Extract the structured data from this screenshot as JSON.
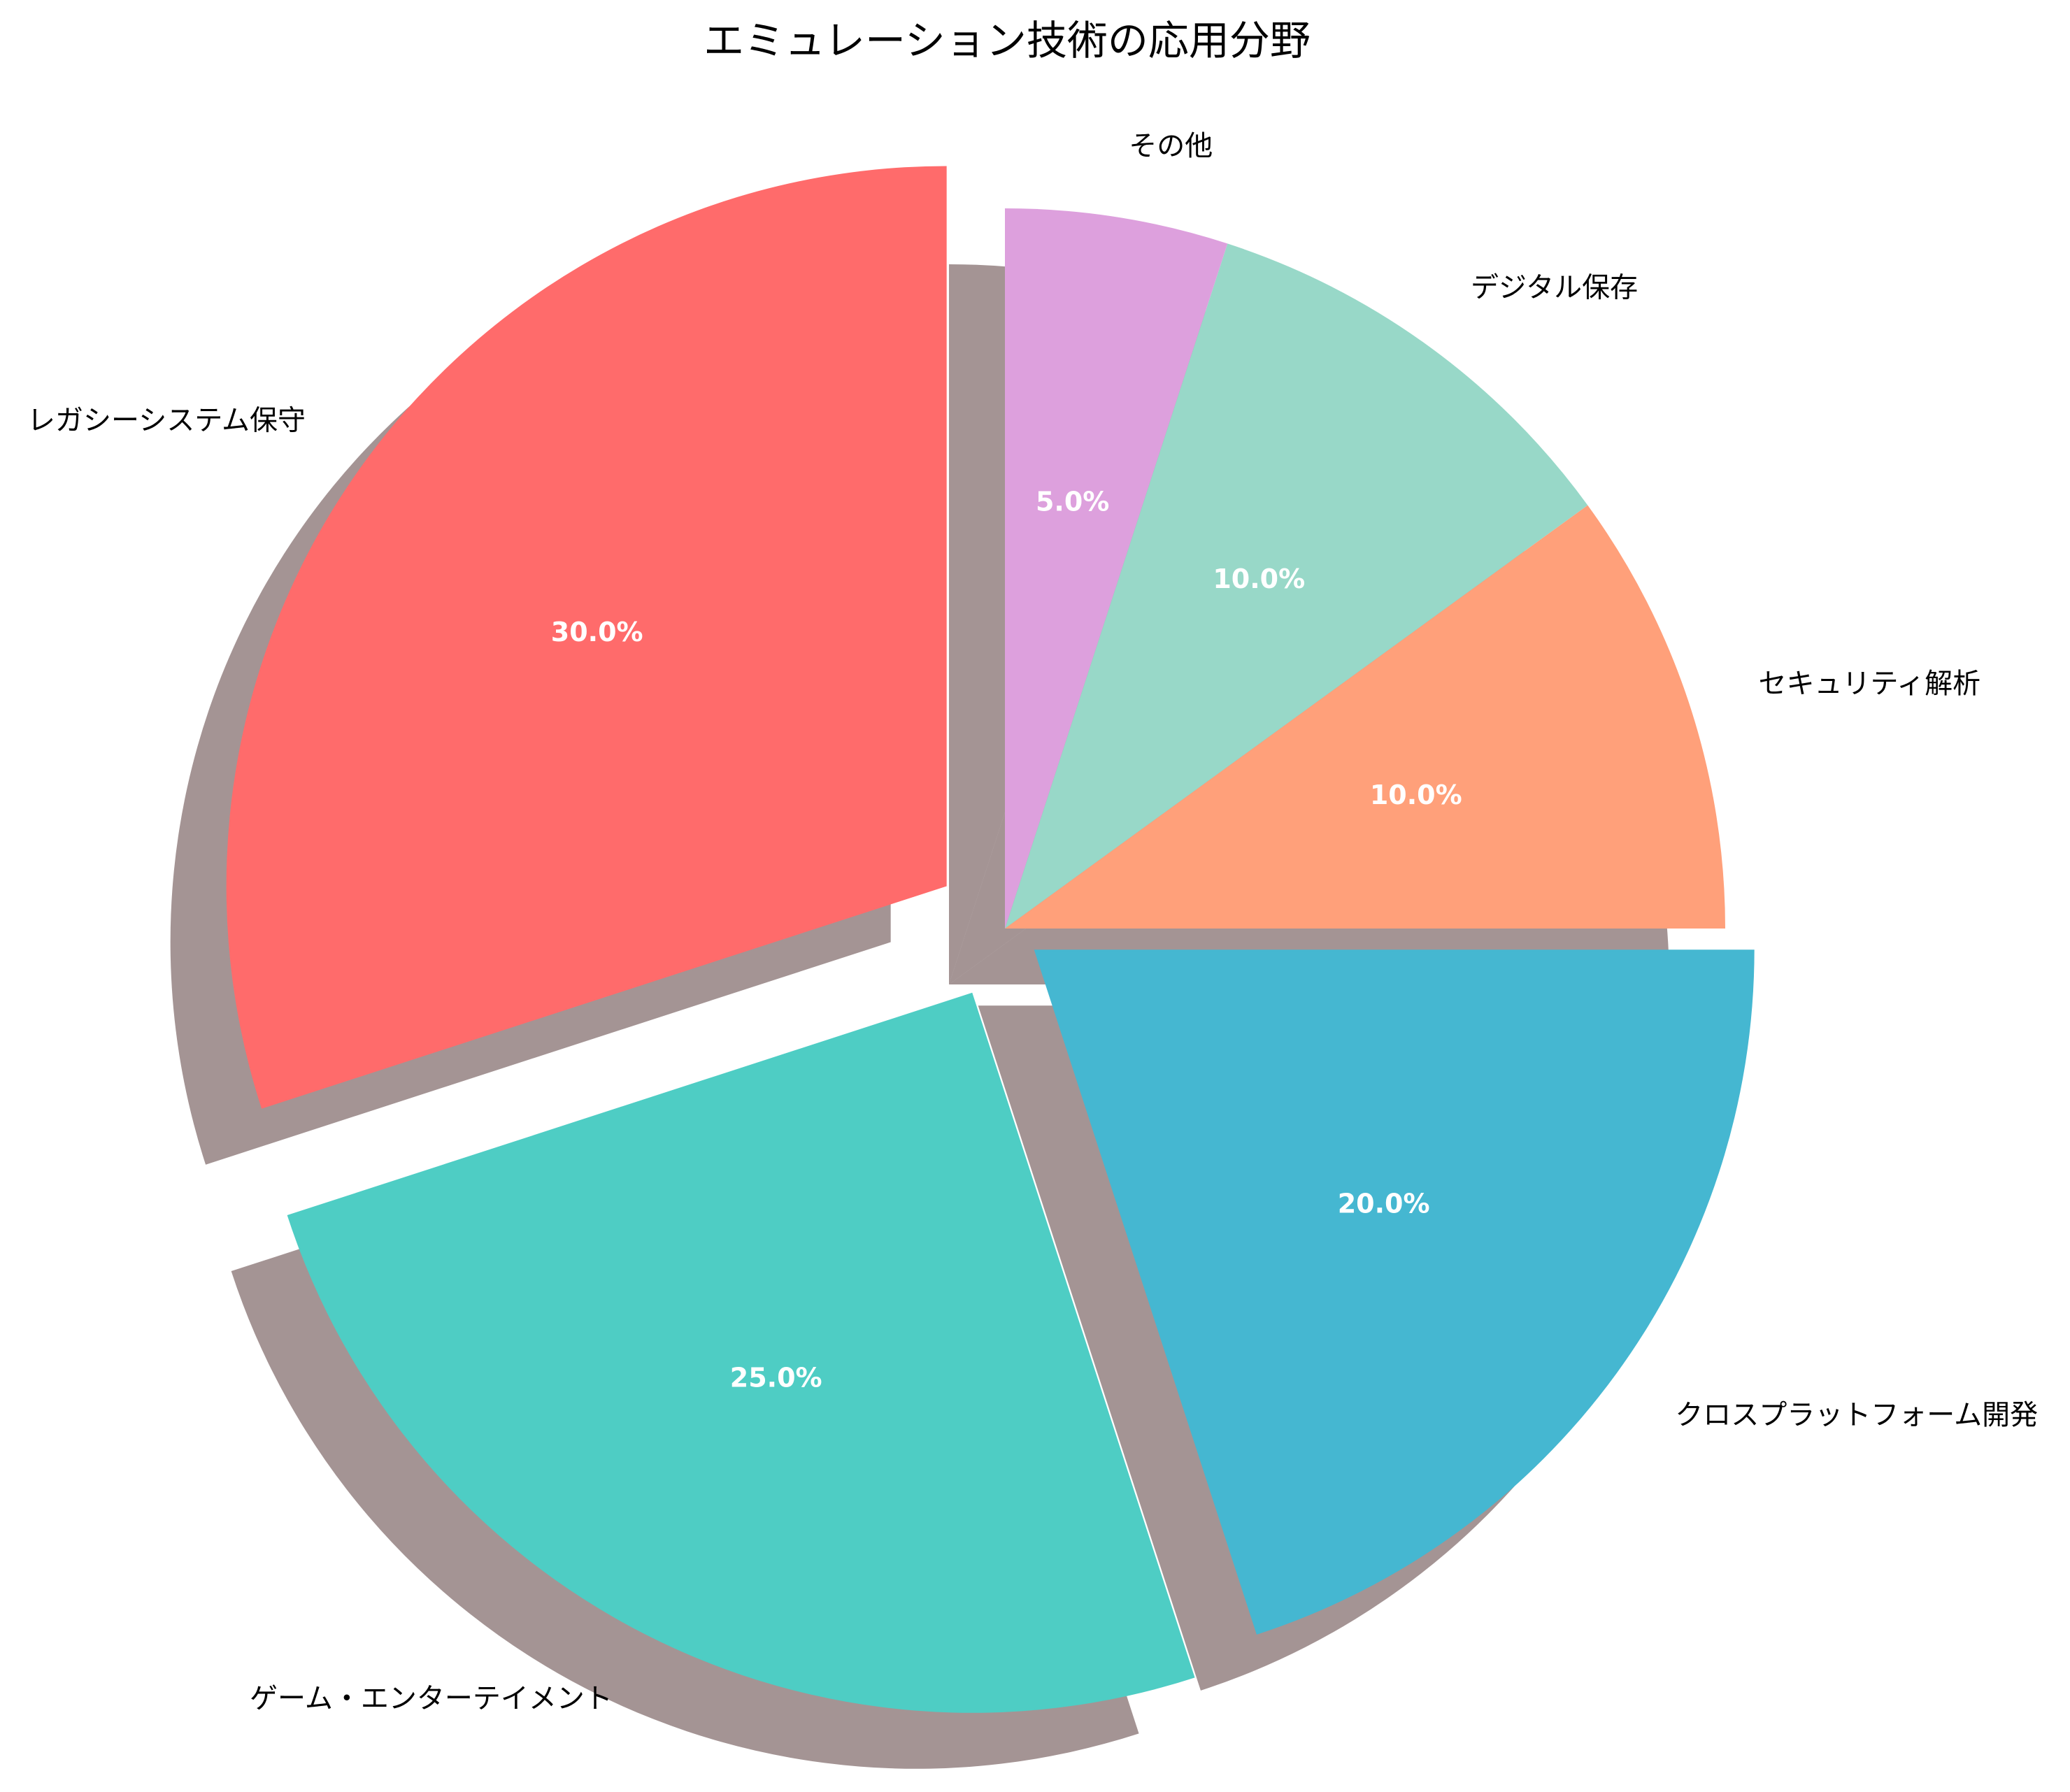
{
  "chart_data": {
    "type": "pie",
    "title": "エミュレーション技術の応用分野",
    "start_angle_deg": 90,
    "direction": "counterclockwise",
    "shadow": true,
    "slices": [
      {
        "label": "レガシーシステム保守",
        "value": 30,
        "pct_label": "30.0%",
        "color": "#FF6B6B",
        "explode": 0.1
      },
      {
        "label": "ゲーム・エンターテイメント",
        "value": 25,
        "pct_label": "25.0%",
        "color": "#4ECDC4",
        "explode": 0.1
      },
      {
        "label": "クロスプラットフォーム開発",
        "value": 20,
        "pct_label": "20.0%",
        "color": "#45B7D1",
        "explode": 0.05
      },
      {
        "label": "セキュリティ解析",
        "value": 10,
        "pct_label": "10.0%",
        "color": "#FFA07A",
        "explode": 0
      },
      {
        "label": "デジタル保存",
        "value": 10,
        "pct_label": "10.0%",
        "color": "#98D8C8",
        "explode": 0
      },
      {
        "label": "その他",
        "value": 5,
        "pct_label": "5.0%",
        "color": "#DDA0DD",
        "explode": 0
      }
    ]
  }
}
